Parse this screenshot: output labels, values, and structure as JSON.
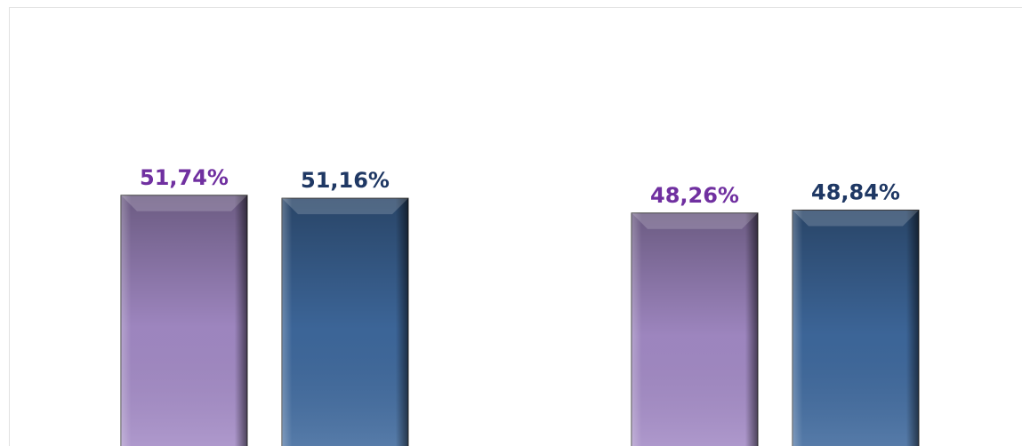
{
  "chart_data": {
    "type": "bar",
    "categories": [
      null,
      null
    ],
    "series": [
      {
        "color": "#a58cc8",
        "label_color": "#7030a0",
        "values": [
          51.74,
          48.26
        ],
        "value_labels": [
          "51,74%",
          "48,26%"
        ]
      },
      {
        "color": "#3f6a9f",
        "label_color": "#1f3864",
        "values": [
          51.16,
          48.84
        ],
        "value_labels": [
          "51,16%",
          "48,84%"
        ]
      }
    ],
    "ylim": [
      0,
      90
    ]
  }
}
